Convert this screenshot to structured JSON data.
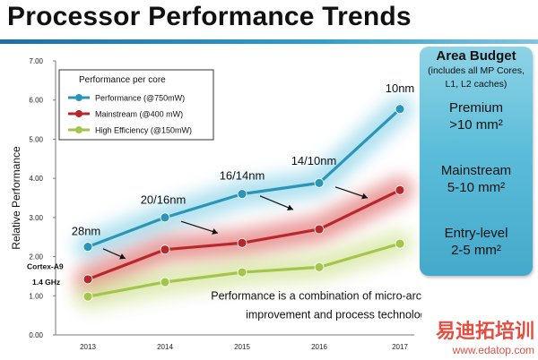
{
  "page": {
    "title": "Processor Performance Trends"
  },
  "chart_data": {
    "type": "line",
    "ylabel": "Relative Performance",
    "xlabel": "",
    "x": [
      "2013",
      "2014",
      "2015",
      "2016",
      "2017"
    ],
    "ylim": [
      0,
      7
    ],
    "yticks": [
      "0.00",
      "1.00",
      "2.00",
      "3.00",
      "4.00",
      "5.00",
      "6.00",
      "7.00"
    ],
    "legend_title": "Performance per core",
    "series": [
      {
        "name": "Performance  (@750mW)",
        "color": "#2b95b8",
        "values": [
          2.25,
          3.0,
          3.6,
          3.88,
          5.77
        ]
      },
      {
        "name": "Mainstream  (@400 mW)",
        "color": "#b8282b",
        "values": [
          1.42,
          2.18,
          2.35,
          2.7,
          3.7
        ]
      },
      {
        "name": "High Efficiency  (@150mW)",
        "color": "#a4c54a",
        "values": [
          0.98,
          1.35,
          1.6,
          1.73,
          2.33
        ]
      }
    ],
    "annotations": {
      "node_labels": [
        {
          "text": "28nm",
          "x": "2013"
        },
        {
          "text": "20/16nm",
          "x": "2014"
        },
        {
          "text": "16/14nm",
          "x": "2015"
        },
        {
          "text": "14/10nm",
          "x": "2016"
        },
        {
          "text": "10nm",
          "x": "2017"
        }
      ],
      "cortex": "Cortex-A9",
      "cortex_freq": "1.4 GHz",
      "note_line1": "Performance is a combination of micro-architectural",
      "note_line2": "improvement and process technology"
    }
  },
  "budget": {
    "title": "Area Budget",
    "subtitle": "(includes all MP Cores, L1, L2 caches)",
    "premium": "Premium",
    "premium_value": ">10 mm²",
    "mainstream": "Mainstream",
    "mainstream_value": "5-10 mm²",
    "entry": "Entry-level",
    "entry_value": "2-5 mm²"
  },
  "watermark": {
    "site_cn": "易迪拓培训",
    "site_url": "www.edatop.com"
  }
}
